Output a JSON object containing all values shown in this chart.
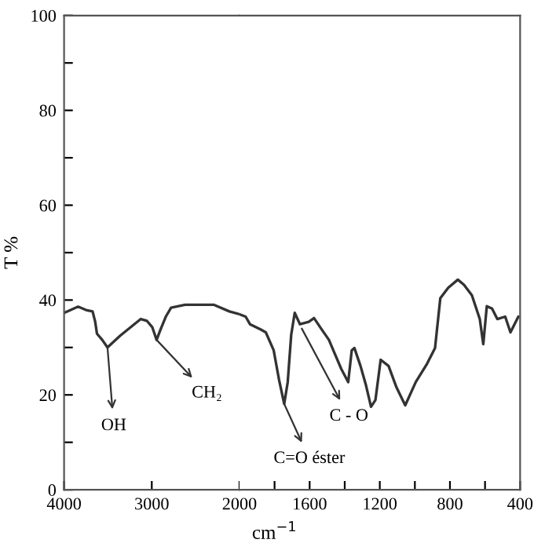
{
  "chart_data": [
    {
      "type": "line",
      "ylabel": "T %",
      "xlabel": "cm$^{−1}$",
      "x": [
        4000,
        3840,
        3750,
        3675,
        3645,
        3625,
        3565,
        3505,
        3360,
        3125,
        3055,
        2995,
        2945,
        2900,
        2840,
        2780,
        2620,
        2290,
        2115,
        2000
      ],
      "values": [
        37.3,
        38.6,
        37.9,
        37.6,
        35.4,
        32.9,
        31.6,
        30.0,
        32.5,
        36.0,
        35.6,
        34.3,
        31.6,
        33.8,
        36.5,
        38.4,
        39.0,
        39.0,
        37.6,
        37.0
      ],
      "color": "#333333",
      "marker": "none",
      "line_style": "solid",
      "grid": false,
      "legend": false,
      "xlim": [
        4000,
        2000
      ],
      "xticks": [
        4000,
        3000,
        2000
      ],
      "ylim": [
        0,
        100
      ],
      "yticks": [
        0,
        {
          "value": 10,
          "label": null
        },
        20,
        {
          "value": 30,
          "label": null
        },
        40,
        {
          "value": 50,
          "label": null
        },
        60,
        {
          "value": 70,
          "label": null
        },
        80,
        {
          "value": 90,
          "label": null
        },
        100
      ],
      "annotations": [
        {
          "text": "OH",
          "x": 3505,
          "y": 30.0
        },
        {
          "text": "CH₂",
          "x": 2945,
          "y": 31.6
        }
      ]
    },
    {
      "type": "line",
      "tick_labels": "x",
      "x": [
        2000,
        1965,
        1940,
        1880,
        1850,
        1805,
        1775,
        1745,
        1725,
        1705,
        1685,
        1655,
        1605,
        1575,
        1535,
        1490,
        1465,
        1420,
        1380,
        1360,
        1345,
        1310,
        1280,
        1250,
        1225,
        1195,
        1150,
        1105,
        1055,
        995,
        930,
        885,
        855,
        810,
        755,
        720,
        675,
        630,
        610,
        590,
        560,
        530,
        485,
        455,
        410
      ],
      "values": [
        37.0,
        36.5,
        34.9,
        33.8,
        33.2,
        29.4,
        23.3,
        18.1,
        22.7,
        32.7,
        37.3,
        34.9,
        35.4,
        36.2,
        34.0,
        31.6,
        29.4,
        25.5,
        22.7,
        29.4,
        29.9,
        26.1,
        22.2,
        17.5,
        18.9,
        27.4,
        26.1,
        21.6,
        17.8,
        22.7,
        26.6,
        29.9,
        40.4,
        42.6,
        44.3,
        43.2,
        41.0,
        36.0,
        30.7,
        38.7,
        38.2,
        36.0,
        36.5,
        33.2,
        36.5
      ],
      "color": "#333333",
      "marker": "none",
      "line_style": "solid",
      "grid": false,
      "legend": false,
      "xlim": [
        2000,
        400
      ],
      "xticks": [
        {
          "value": 1800,
          "label": null
        },
        1600,
        {
          "value": 1400,
          "label": null
        },
        1200,
        {
          "value": 1000,
          "label": null
        },
        800,
        {
          "value": 600,
          "label": null
        },
        400
      ],
      "ylim": [
        0,
        100
      ],
      "annotations": [
        {
          "text": "C=O éster",
          "x": 1745,
          "y": 18.1
        },
        {
          "text": "C - O",
          "x": 1645,
          "y": 34.0
        }
      ]
    }
  ]
}
